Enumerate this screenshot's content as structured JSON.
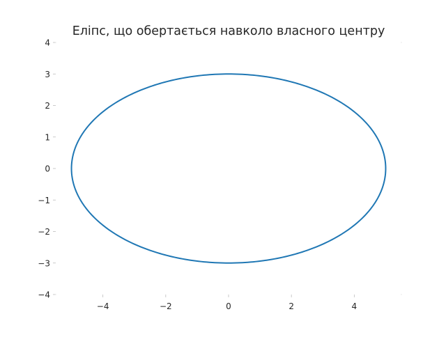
{
  "chart_data": {
    "type": "line",
    "title": "Еліпс, що обертається навколо власного центру",
    "xlabel": "",
    "ylabel": "",
    "xlim": [
      -5.5,
      5.5
    ],
    "ylim": [
      -4,
      4
    ],
    "xticks": [
      -4,
      -2,
      0,
      2,
      4
    ],
    "yticks": [
      -4,
      -3,
      -2,
      -1,
      0,
      1,
      2,
      3,
      4
    ],
    "xtick_labels": [
      "−4",
      "−2",
      "0",
      "2",
      "4"
    ],
    "ytick_labels": [
      "−4",
      "−3",
      "−2",
      "−1",
      "0",
      "1",
      "2",
      "3",
      "4"
    ],
    "grid": false,
    "spines_visible": false,
    "series": [
      {
        "shape": "ellipse",
        "center": [
          0,
          0
        ],
        "semi_axis_x": 5,
        "semi_axis_y": 3,
        "rotation_deg": 0,
        "color": "#1f77b4"
      }
    ]
  }
}
